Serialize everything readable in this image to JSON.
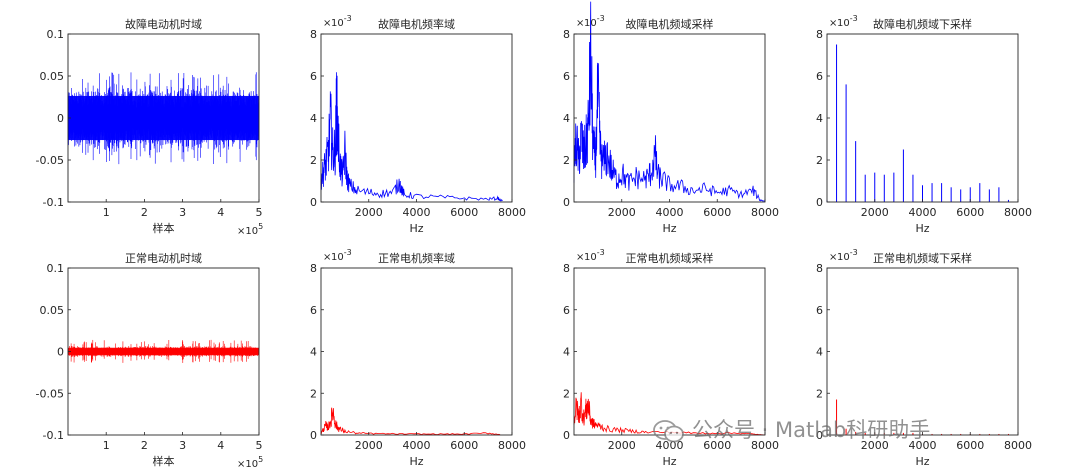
{
  "watermark": {
    "text": "公众号 · Matlab科研助手"
  },
  "chart_data": [
    {
      "type": "line",
      "title": "故障电动机时域",
      "xlabel": "样本",
      "ylabel": "",
      "xlim": [
        0,
        500000
      ],
      "ylim": [
        -0.1,
        0.1
      ],
      "xticks": [
        100000,
        200000,
        300000,
        400000,
        500000
      ],
      "xticklabels": [
        "1",
        "2",
        "3",
        "4",
        "5"
      ],
      "yticks": [
        -0.1,
        -0.05,
        0,
        0.05,
        0.1
      ],
      "yticklabels": [
        "-0.1",
        "-0.05",
        "0",
        "0.05",
        "0.1"
      ],
      "exponent_x": "×10^5",
      "series": [
        {
          "color": "#0000ff",
          "kind": "noise",
          "center": 0,
          "typical_amplitude": 0.035,
          "peak_amplitude": 0.055
        }
      ]
    },
    {
      "type": "line",
      "title": "故障电机频率域",
      "xlabel": "Hz",
      "ylabel": "",
      "xlim": [
        0,
        8000
      ],
      "ylim": [
        0,
        8
      ],
      "xticks": [
        2000,
        4000,
        6000,
        8000
      ],
      "xticklabels": [
        "2000",
        "4000",
        "6000",
        "8000"
      ],
      "yticks": [
        0,
        2,
        4,
        6,
        8
      ],
      "yticklabels": [
        "0",
        "2",
        "4",
        "6",
        "8"
      ],
      "exponent_y": "×10^-3",
      "series": [
        {
          "color": "#0000ff",
          "x": [
            0,
            100,
            200,
            300,
            400,
            500,
            600,
            650,
            700,
            800,
            900,
            1000,
            1100,
            1200,
            1500,
            2000,
            2500,
            3000,
            3300,
            3400,
            3500,
            4000,
            5000,
            6000,
            7000,
            7400,
            7600
          ],
          "y": [
            1.2,
            1.6,
            2.0,
            2.6,
            4.2,
            2.5,
            2.8,
            5.2,
            3.8,
            2.0,
            1.3,
            2.6,
            1.2,
            0.9,
            0.6,
            0.5,
            0.45,
            0.5,
            1.0,
            0.6,
            0.4,
            0.3,
            0.25,
            0.2,
            0.15,
            0.2,
            0.05
          ]
        }
      ]
    },
    {
      "type": "line",
      "title": "故障电机频域采样",
      "xlabel": "Hz",
      "ylabel": "",
      "xlim": [
        0,
        8000
      ],
      "ylim": [
        0,
        8
      ],
      "xticks": [
        2000,
        4000,
        6000,
        8000
      ],
      "xticklabels": [
        "2000",
        "4000",
        "6000",
        "8000"
      ],
      "yticks": [
        0,
        2,
        4,
        6,
        8
      ],
      "yticklabels": [
        "0",
        "2",
        "4",
        "6",
        "8"
      ],
      "exponent_y": "×10^-3",
      "series": [
        {
          "color": "#0000ff",
          "x": [
            0,
            100,
            200,
            300,
            400,
            500,
            600,
            700,
            800,
            900,
            1000,
            1100,
            1200,
            1400,
            1600,
            1800,
            2000,
            2300,
            2600,
            3000,
            3200,
            3400,
            3500,
            3700,
            4000,
            4500,
            5000,
            5500,
            6000,
            6500,
            7000,
            7500,
            7800,
            8000
          ],
          "y": [
            2.0,
            3.2,
            2.2,
            3.4,
            2.5,
            3.0,
            4.0,
            7.5,
            3.0,
            2.2,
            5.6,
            2.8,
            2.0,
            2.5,
            1.6,
            1.2,
            1.5,
            1.0,
            1.3,
            1.2,
            1.5,
            2.5,
            1.4,
            1.2,
            0.9,
            0.8,
            0.6,
            0.7,
            0.5,
            0.6,
            0.4,
            0.6,
            0.1,
            0.05
          ]
        }
      ]
    },
    {
      "type": "bar",
      "title": "故障电机频域下采样",
      "xlabel": "Hz",
      "ylabel": "",
      "xlim": [
        0,
        8000
      ],
      "ylim": [
        0,
        8
      ],
      "xticks": [
        2000,
        4000,
        6000,
        8000
      ],
      "xticklabels": [
        "2000",
        "4000",
        "6000",
        "8000"
      ],
      "yticks": [
        0,
        2,
        4,
        6,
        8
      ],
      "yticklabels": [
        "0",
        "2",
        "4",
        "6",
        "8"
      ],
      "exponent_y": "×10^-3",
      "series": [
        {
          "color": "#0000ff",
          "x": [
            0,
            400,
            800,
            1200,
            1600,
            2000,
            2400,
            2800,
            3200,
            3600,
            4000,
            4400,
            4800,
            5200,
            5600,
            6000,
            6400,
            6800,
            7200,
            7600
          ],
          "y": [
            0.1,
            7.5,
            5.6,
            2.9,
            1.3,
            1.4,
            1.3,
            1.4,
            2.5,
            1.3,
            0.8,
            0.9,
            0.9,
            0.7,
            0.6,
            0.7,
            0.9,
            0.6,
            0.7,
            0.1
          ]
        }
      ]
    },
    {
      "type": "line",
      "title": "正常电动机时域",
      "xlabel": "样本",
      "ylabel": "",
      "xlim": [
        0,
        500000
      ],
      "ylim": [
        -0.1,
        0.1
      ],
      "xticks": [
        100000,
        200000,
        300000,
        400000,
        500000
      ],
      "xticklabels": [
        "1",
        "2",
        "3",
        "4",
        "5"
      ],
      "yticks": [
        -0.1,
        -0.05,
        0,
        0.05,
        0.1
      ],
      "yticklabels": [
        "-0.1",
        "-0.05",
        "0",
        "0.05",
        "0.1"
      ],
      "exponent_x": "×10^5",
      "series": [
        {
          "color": "#ff0000",
          "kind": "noise",
          "center": 0,
          "typical_amplitude": 0.006,
          "peak_amplitude": 0.014
        }
      ]
    },
    {
      "type": "line",
      "title": "正常电机频率域",
      "xlabel": "Hz",
      "ylabel": "",
      "xlim": [
        0,
        8000
      ],
      "ylim": [
        0,
        8
      ],
      "xticks": [
        2000,
        4000,
        6000,
        8000
      ],
      "xticklabels": [
        "2000",
        "4000",
        "6000",
        "8000"
      ],
      "yticks": [
        0,
        2,
        4,
        6,
        8
      ],
      "yticklabels": [
        "0",
        "2",
        "4",
        "6",
        "8"
      ],
      "exponent_y": "×10^-3",
      "series": [
        {
          "color": "#ff0000",
          "x": [
            0,
            100,
            200,
            300,
            400,
            500,
            600,
            700,
            800,
            1000,
            1500,
            2000,
            3000,
            4000,
            5000,
            6000,
            7000,
            7500
          ],
          "y": [
            0.1,
            0.3,
            0.5,
            0.4,
            0.7,
            1.3,
            0.6,
            0.4,
            0.3,
            0.2,
            0.1,
            0.08,
            0.06,
            0.05,
            0.05,
            0.05,
            0.1,
            0.02
          ]
        }
      ]
    },
    {
      "type": "line",
      "title": "正常电机频域采样",
      "xlabel": "Hz",
      "ylabel": "",
      "xlim": [
        0,
        8000
      ],
      "ylim": [
        0,
        8
      ],
      "xticks": [
        2000,
        4000,
        6000,
        8000
      ],
      "xticklabels": [
        "2000",
        "4000",
        "6000",
        "8000"
      ],
      "yticks": [
        0,
        2,
        4,
        6,
        8
      ],
      "yticklabels": [
        "0",
        "2",
        "4",
        "6",
        "8"
      ],
      "exponent_y": "×10^-3",
      "series": [
        {
          "color": "#ff0000",
          "x": [
            0,
            100,
            200,
            300,
            400,
            500,
            600,
            700,
            800,
            1000,
            1200,
            1500,
            2000,
            2500,
            3000,
            4000,
            5000,
            6000,
            7000,
            7500,
            8000
          ],
          "y": [
            0.8,
            1.5,
            1.0,
            1.7,
            0.9,
            1.3,
            1.6,
            0.8,
            0.6,
            0.5,
            0.4,
            0.3,
            0.25,
            0.2,
            0.15,
            0.15,
            0.1,
            0.1,
            0.1,
            0.05,
            0.0
          ]
        }
      ]
    },
    {
      "type": "bar",
      "title": "正常电机频域下采样",
      "xlabel": "Hz",
      "ylabel": "",
      "xlim": [
        0,
        8000
      ],
      "ylim": [
        0,
        8
      ],
      "xticks": [
        2000,
        4000,
        6000,
        8000
      ],
      "xticklabels": [
        "2000",
        "4000",
        "6000",
        "8000"
      ],
      "yticks": [
        0,
        2,
        4,
        6,
        8
      ],
      "yticklabels": [
        "0",
        "2",
        "4",
        "6",
        "8"
      ],
      "exponent_y": "×10^-3",
      "series": [
        {
          "color": "#ff0000",
          "x": [
            400,
            800,
            1200,
            1600,
            2000,
            2400,
            2800,
            3200,
            3600,
            4000,
            4400,
            4800,
            5200,
            5600,
            6000,
            6400,
            6800,
            7200,
            7600
          ],
          "y": [
            1.7,
            0.3,
            0.15,
            0.1,
            0.1,
            0.1,
            0.1,
            0.1,
            0.1,
            0.05,
            0.05,
            0.05,
            0.05,
            0.05,
            0.05,
            0.05,
            0.05,
            0.05,
            0.05
          ]
        }
      ]
    }
  ]
}
